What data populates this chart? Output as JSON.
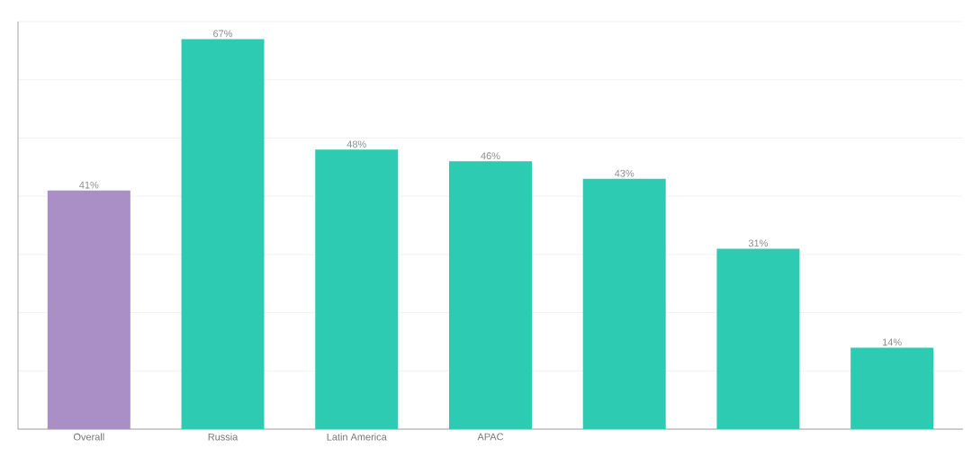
{
  "chart_data": {
    "type": "bar",
    "categories": [
      "Overall",
      "Russia",
      "Latin America",
      "APAC",
      null,
      null,
      null
    ],
    "values": [
      41,
      67,
      48,
      46,
      43,
      31,
      14
    ],
    "colors": [
      "#a98fc6",
      "#2dcbb1",
      "#2dcbb1",
      "#2dcbb1",
      "#2dcbb1",
      "#2dcbb1",
      "#2dcbb1"
    ],
    "value_labels": [
      "41%",
      "67%",
      "48%",
      "46%",
      "43%",
      "31%",
      "14%"
    ],
    "yticks": [
      {
        "value": 0,
        "label": null
      },
      {
        "value": 10,
        "label": null
      },
      {
        "value": 20,
        "label": null
      },
      {
        "value": 30,
        "label": null
      },
      {
        "value": 40,
        "label": null
      },
      {
        "value": 50,
        "label": null
      },
      {
        "value": 60,
        "label": null
      },
      {
        "value": 70,
        "label": null
      }
    ],
    "grid": "y",
    "tick_labels": "x"
  }
}
